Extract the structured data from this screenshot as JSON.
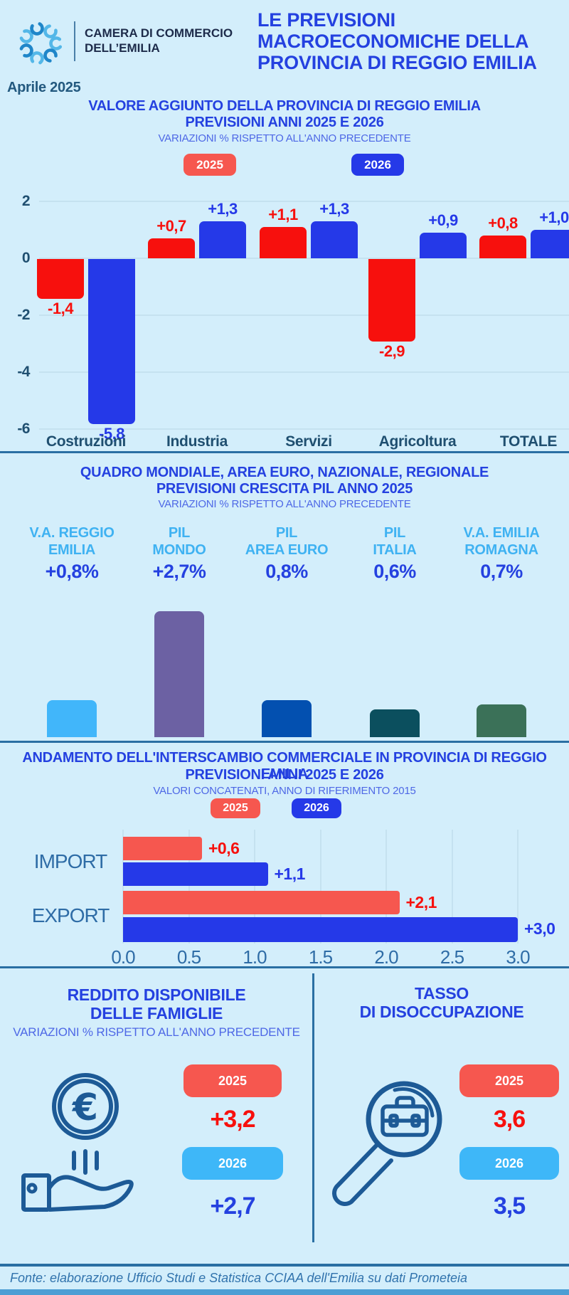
{
  "colors": {
    "background": "#d3eefb",
    "title_blue": "#2441e0",
    "subtitle_blue": "#4e68e6",
    "steel": "#2e6ca6",
    "dark_steel": "#1f4f70",
    "navy": "#1d2b4a",
    "red": "#f7100d",
    "salmon": "#f6574f",
    "blue": "#2539e8",
    "light_blue": "#3eb7f8",
    "grid": "#c5e2f0",
    "divider": "#2a6fa3",
    "icon_stroke": "#1d5a96",
    "footer_strip": "#4d9ed4",
    "pil_label": "#3fb2f2"
  },
  "header": {
    "logo_line1": "CAMERA DI COMMERCIO",
    "logo_line2": "DELL’EMILIA",
    "title": "LE PREVISIONI\nMACROECONOMICHE DELLA\nPROVINCIA DI REGGIO EMILIA",
    "date": "Aprile 2025"
  },
  "chart1": {
    "title_line1": "VALORE AGGIUNTO DELLA PROVINCIA DI REGGIO EMILIA",
    "title_line2": "PREVISIONI ANNI 2025 E 2026",
    "subtitle": "VARIAZIONI % RISPETTO ALL'ANNO PRECEDENTE",
    "legend": [
      {
        "label": "2025",
        "color": "#f6574f"
      },
      {
        "label": "2026",
        "color": "#2539e8"
      }
    ],
    "y_ticks": [
      "2",
      "0",
      "-2",
      "-4",
      "-6"
    ],
    "categories": [
      "Costruzioni",
      "Industria",
      "Servizi",
      "Agricoltura",
      "TOTALE"
    ],
    "series": [
      {
        "name": "2025",
        "color": "#f7100d",
        "values": [
          -1.4,
          0.7,
          1.1,
          -2.9,
          0.8
        ],
        "labels": [
          "-1,4",
          "+0,7",
          "+1,1",
          "-2,9",
          "+0,8"
        ]
      },
      {
        "name": "2026",
        "color": "#2539e8",
        "values": [
          -5.8,
          1.3,
          1.3,
          0.9,
          1.0
        ],
        "labels": [
          "-5,8",
          "+1,3",
          "+1,3",
          "+0,9",
          "+1,0"
        ]
      }
    ]
  },
  "chart2": {
    "title_line1": "QUADRO MONDIALE, AREA EURO, NAZIONALE, REGIONALE",
    "title_line2": "PREVISIONI CRESCITA PIL ANNO 2025",
    "subtitle": "VARIAZIONI % RISPETTO ALL'ANNO PRECEDENTE",
    "items": [
      {
        "label": "V.A. REGGIO\nEMILIA",
        "value_label": "+0,8%",
        "value": 0.8,
        "color": "#41b6fa"
      },
      {
        "label": "PIL\nMONDO",
        "value_label": "+2,7%",
        "value": 2.7,
        "color": "#6c61a3"
      },
      {
        "label": "PIL\nAREA EURO",
        "value_label": "0,8%",
        "value": 0.8,
        "color": "#0350b0"
      },
      {
        "label": "PIL\nITALIA",
        "value_label": "0,6%",
        "value": 0.6,
        "color": "#0b4f5e"
      },
      {
        "label": "V.A. EMILIA\nROMAGNA",
        "value_label": "0,7%",
        "value": 0.7,
        "color": "#3b7158"
      }
    ]
  },
  "chart3": {
    "title_line1": "ANDAMENTO DELL'INTERSCAMBIO COMMERCIALE IN PROVINCIA DI REGGIO EMILIA",
    "title_line2": "PREVISIONI ANNI  2025 E 2026",
    "subtitle": "VALORI CONCATENATI, ANNO DI RIFERIMENTO 2015",
    "legend": [
      {
        "label": "2025",
        "color": "#f6574f"
      },
      {
        "label": "2026",
        "color": "#2539e8"
      }
    ],
    "x_ticks": [
      "0.0",
      "0.5",
      "1.0",
      "1.5",
      "2.0",
      "2.5",
      "3.0"
    ],
    "rows": [
      {
        "label": "IMPORT",
        "bars": [
          {
            "year": "2025",
            "value": 0.6,
            "label": "+0,6",
            "color": "#f6574f",
            "label_color": "#f7100d"
          },
          {
            "year": "2026",
            "value": 1.1,
            "label": "+1,1",
            "color": "#2539e8",
            "label_color": "#2539e8"
          }
        ]
      },
      {
        "label": "EXPORT",
        "bars": [
          {
            "year": "2025",
            "value": 2.1,
            "label": "+2,1",
            "color": "#f6574f",
            "label_color": "#f7100d"
          },
          {
            "year": "2026",
            "value": 3.0,
            "label": "+3,0",
            "color": "#2539e8",
            "label_color": "#2539e8"
          }
        ]
      }
    ]
  },
  "panel_income": {
    "title_line1": "REDDITO DISPONIBILE",
    "title_line2": "DELLE FAMIGLIE",
    "subtitle": "VARIAZIONI % RISPETTO ALL'ANNO PRECEDENTE",
    "badge_2025": "2025",
    "value_2025": "+3,2",
    "badge_2026": "2026",
    "value_2026": "+2,7"
  },
  "panel_unemployment": {
    "title_line1": "TASSO",
    "title_line2": "DI DISOCCUPAZIONE",
    "badge_2025": "2025",
    "value_2025": "3,6",
    "badge_2026": "2026",
    "value_2026": "3,5"
  },
  "footer": {
    "source": "Fonte: elaborazione Ufficio Studi e Statistica CCIAA dell'Emilia su dati Prometeia"
  },
  "chart_data": [
    {
      "type": "bar",
      "title": "VALORE AGGIUNTO DELLA PROVINCIA DI REGGIO EMILIA — PREVISIONI ANNI 2025 E 2026",
      "subtitle": "VARIAZIONI % RISPETTO ALL'ANNO PRECEDENTE",
      "categories": [
        "Costruzioni",
        "Industria",
        "Servizi",
        "Agricoltura",
        "TOTALE"
      ],
      "series": [
        {
          "name": "2025",
          "values": [
            -1.4,
            0.7,
            1.1,
            -2.9,
            0.8
          ]
        },
        {
          "name": "2026",
          "values": [
            -5.8,
            1.3,
            1.3,
            0.9,
            1.0
          ]
        }
      ],
      "ylim": [
        -6,
        2
      ],
      "grid": true,
      "legend_position": "top"
    },
    {
      "type": "bar",
      "title": "QUADRO MONDIALE, AREA EURO, NAZIONALE, REGIONALE — PREVISIONI CRESCITA PIL ANNO 2025",
      "subtitle": "VARIAZIONI % RISPETTO ALL'ANNO PRECEDENTE",
      "categories": [
        "V.A. Reggio Emilia",
        "PIL Mondo",
        "PIL Area Euro",
        "PIL Italia",
        "V.A. Emilia Romagna"
      ],
      "values": [
        0.8,
        2.7,
        0.8,
        0.6,
        0.7
      ],
      "grid": false
    },
    {
      "type": "bar",
      "orientation": "horizontal",
      "title": "ANDAMENTO DELL'INTERSCAMBIO COMMERCIALE IN PROVINCIA DI REGGIO EMILIA — PREVISIONI ANNI 2025 E 2026",
      "subtitle": "VALORI CONCATENATI, ANNO DI RIFERIMENTO 2015",
      "categories": [
        "IMPORT",
        "EXPORT"
      ],
      "series": [
        {
          "name": "2025",
          "values": [
            0.6,
            2.1
          ]
        },
        {
          "name": "2026",
          "values": [
            1.1,
            3.0
          ]
        }
      ],
      "xlim": [
        0,
        3
      ],
      "grid": true
    },
    {
      "type": "table",
      "title": "REDDITO DISPONIBILE DELLE FAMIGLIE (variazioni %)",
      "categories": [
        "2025",
        "2026"
      ],
      "values": [
        3.2,
        2.7
      ]
    },
    {
      "type": "table",
      "title": "TASSO DI DISOCCUPAZIONE",
      "categories": [
        "2025",
        "2026"
      ],
      "values": [
        3.6,
        3.5
      ]
    }
  ]
}
